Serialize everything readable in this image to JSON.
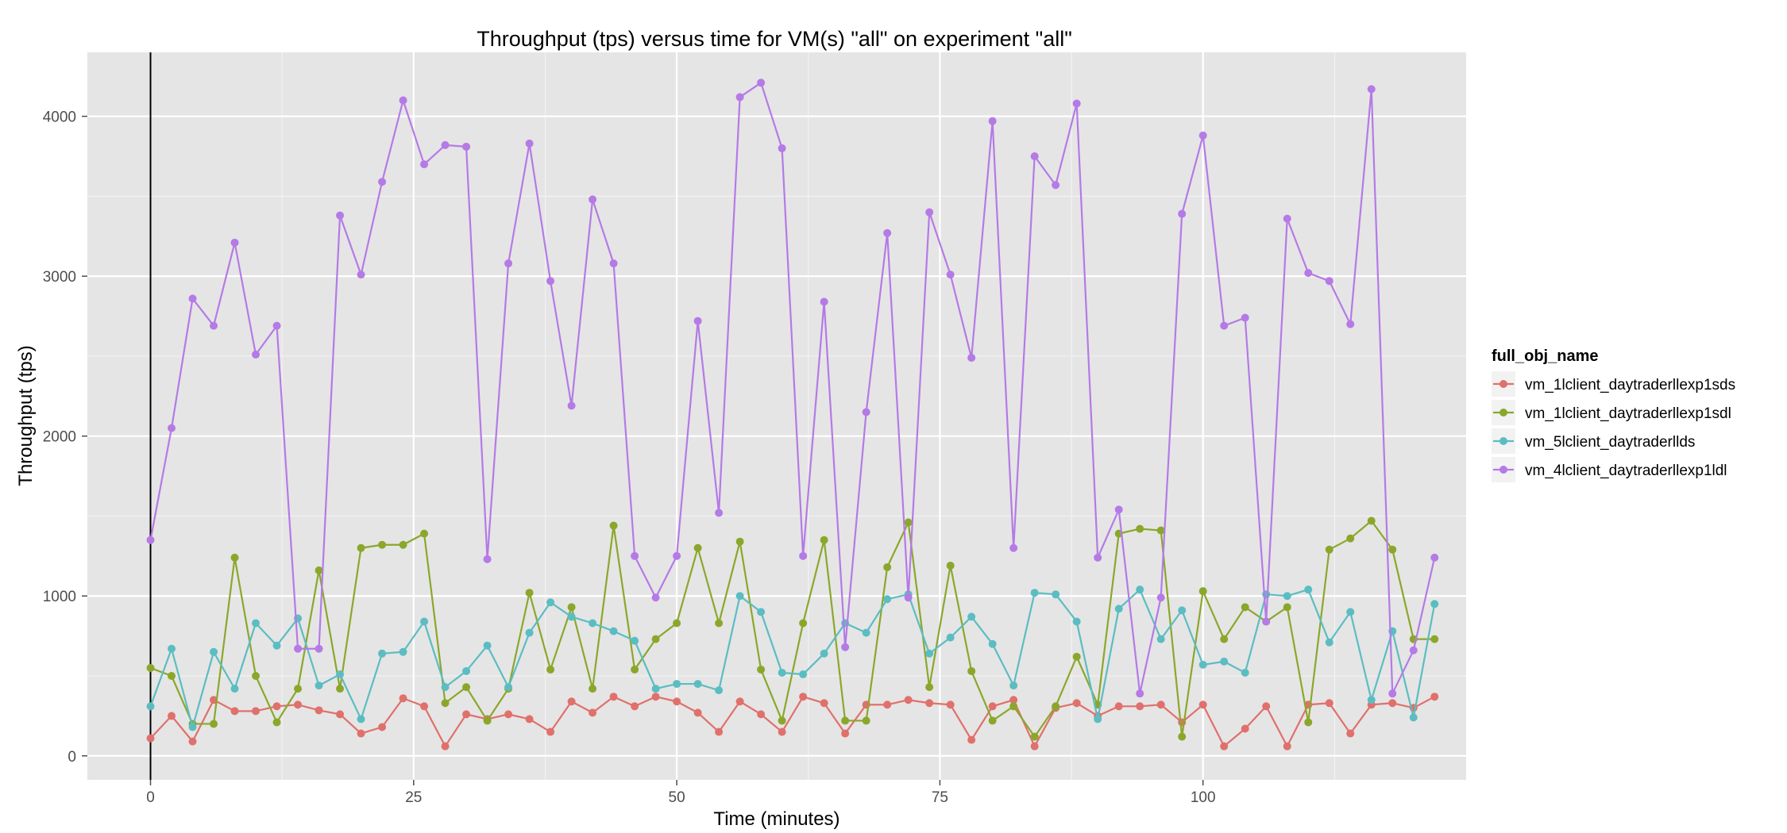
{
  "chart_data": {
    "type": "line",
    "title": "Throughput (tps) versus time for VM(s) \"all\" on experiment \"all\"",
    "xlabel": "Time (minutes)",
    "ylabel": "Throughput (tps)",
    "xlim": [
      -6,
      125
    ],
    "ylim": [
      -150,
      4400
    ],
    "x_ticks": [
      0,
      25,
      50,
      75,
      100
    ],
    "x_tick_labels": [
      "0",
      "25",
      "50",
      "75",
      "100"
    ],
    "y_ticks": [
      0,
      1000,
      2000,
      3000,
      4000
    ],
    "y_tick_labels": [
      "0",
      "1000",
      "2000",
      "3000",
      "4000"
    ],
    "grid": true,
    "legend_title": "full_obj_name",
    "legend_position": "right",
    "vline_x": 0,
    "x": [
      0,
      2,
      4,
      6,
      8,
      10,
      12,
      14,
      16,
      18,
      20,
      22,
      24,
      26,
      28,
      30,
      32,
      34,
      36,
      38,
      40,
      42,
      44,
      46,
      48,
      50,
      52,
      54,
      56,
      58,
      60,
      62,
      64,
      66,
      68,
      70,
      72,
      74,
      76,
      78,
      80,
      82,
      84,
      86,
      88,
      90,
      92,
      94,
      96,
      98,
      100,
      102,
      104,
      106,
      108,
      110,
      112,
      114,
      116,
      118,
      120,
      122
    ],
    "series": [
      {
        "name": "vm_1lclient_daytraderllexp1sds",
        "color": "#e0706b",
        "values": [
          110,
          250,
          90,
          350,
          280,
          280,
          310,
          320,
          285,
          260,
          140,
          180,
          360,
          310,
          60,
          260,
          230,
          260,
          230,
          150,
          340,
          270,
          370,
          310,
          370,
          340,
          270,
          150,
          340,
          260,
          150,
          370,
          330,
          140,
          320,
          320,
          350,
          330,
          320,
          100,
          310,
          350,
          60,
          300,
          330,
          250,
          310,
          310,
          320,
          210,
          320,
          60,
          170,
          310,
          60,
          320,
          330,
          140,
          320,
          330,
          300,
          370
        ]
      },
      {
        "name": "vm_1lclient_daytraderllexp1sdl",
        "color": "#8ba72b",
        "values": [
          550,
          500,
          200,
          200,
          1240,
          500,
          210,
          420,
          1160,
          420,
          1300,
          1320,
          1320,
          1390,
          330,
          430,
          220,
          420,
          1020,
          540,
          930,
          420,
          1440,
          540,
          730,
          830,
          1300,
          830,
          1340,
          540,
          220,
          830,
          1350,
          220,
          220,
          1180,
          1460,
          430,
          1190,
          530,
          220,
          310,
          120,
          310,
          620,
          320,
          1390,
          1420,
          1410,
          120,
          1030,
          730,
          930,
          840,
          930,
          210,
          1290,
          1360,
          1470,
          1290,
          730,
          730
        ]
      },
      {
        "name": "vm_5lclient_daytraderllds",
        "color": "#5bbdc2",
        "values": [
          310,
          670,
          180,
          650,
          420,
          830,
          690,
          860,
          440,
          510,
          230,
          640,
          650,
          840,
          430,
          530,
          690,
          430,
          770,
          960,
          870,
          830,
          780,
          720,
          420,
          450,
          450,
          410,
          1000,
          900,
          520,
          510,
          640,
          830,
          770,
          980,
          1010,
          640,
          740,
          870,
          700,
          440,
          1020,
          1010,
          840,
          230,
          920,
          1040,
          730,
          910,
          570,
          590,
          520,
          1010,
          1000,
          1040,
          710,
          900,
          350,
          780,
          240,
          950
        ]
      },
      {
        "name": "vm_4lclient_daytraderllexp1ldl",
        "color": "#b57ae6",
        "values": [
          1350,
          2050,
          2860,
          2690,
          3210,
          2510,
          2690,
          670,
          670,
          3380,
          3010,
          3590,
          4100,
          3700,
          3820,
          3810,
          1230,
          3080,
          3830,
          2970,
          2190,
          3480,
          3080,
          1250,
          990,
          1250,
          2720,
          1520,
          4120,
          4210,
          3800,
          1250,
          2840,
          680,
          2150,
          3270,
          990,
          3400,
          3010,
          2490,
          3970,
          1300,
          3750,
          3570,
          4080,
          1240,
          1540,
          390,
          990,
          3390,
          3880,
          2690,
          2740,
          840,
          3360,
          3020,
          2970,
          2700,
          4170,
          390,
          660,
          1240
        ]
      }
    ]
  }
}
